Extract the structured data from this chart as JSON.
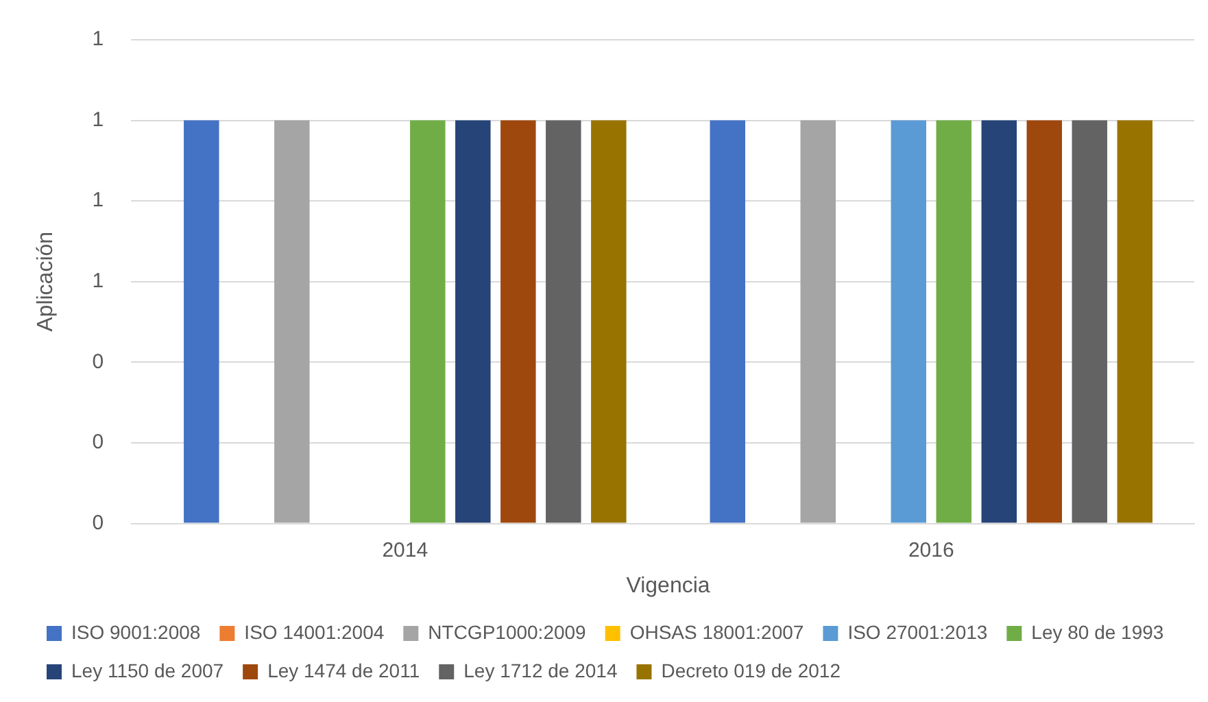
{
  "chart_data": {
    "type": "bar",
    "xlabel": "Vigencia",
    "ylabel": "Aplicación",
    "categories": [
      "2014",
      "2016"
    ],
    "series": [
      {
        "name": "ISO 9001:2008",
        "color": "#4472c4",
        "values": [
          1,
          1
        ]
      },
      {
        "name": "ISO 14001:2004",
        "color": "#ed7d31",
        "values": [
          0,
          0
        ]
      },
      {
        "name": "NTCGP1000:2009",
        "color": "#a5a5a5",
        "values": [
          1,
          1
        ]
      },
      {
        "name": "OHSAS 18001:2007",
        "color": "#ffc000",
        "values": [
          0,
          0
        ]
      },
      {
        "name": "ISO 27001:2013",
        "color": "#5b9bd5",
        "values": [
          0,
          1
        ]
      },
      {
        "name": "Ley 80 de 1993",
        "color": "#70ad47",
        "values": [
          1,
          1
        ]
      },
      {
        "name": "Ley 1150 de 2007",
        "color": "#264478",
        "values": [
          1,
          1
        ]
      },
      {
        "name": "Ley 1474 de 2011",
        "color": "#9e480e",
        "values": [
          1,
          1
        ]
      },
      {
        "name": "Ley 1712 de 2014",
        "color": "#636363",
        "values": [
          1,
          1
        ]
      },
      {
        "name": "Decreto 019 de 2012",
        "color": "#997300",
        "values": [
          1,
          1
        ]
      }
    ],
    "ylim": [
      0,
      1.2
    ],
    "yticks": [
      {
        "value": 0,
        "label": "0"
      },
      {
        "value": 0.2,
        "label": "0"
      },
      {
        "value": 0.4,
        "label": "0"
      },
      {
        "value": 0.6,
        "label": "1"
      },
      {
        "value": 0.8,
        "label": "1"
      },
      {
        "value": 1,
        "label": "1"
      },
      {
        "value": 1.2,
        "label": "1"
      }
    ],
    "grid": "y",
    "legend": "bottom"
  }
}
